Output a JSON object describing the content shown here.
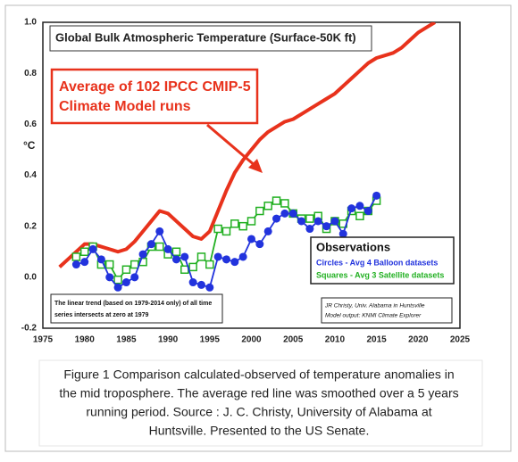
{
  "chart_data": {
    "type": "line",
    "title": "Global Bulk Atmospheric Temperature (Surface-50K ft)",
    "ylabel": "°C",
    "annotation": [
      "Average of 102 IPCC CMIP-5",
      "Climate Model runs"
    ],
    "legend_title": "Observations",
    "note": [
      "The linear trend (based on 1979-2014 only) of all time",
      "series intersects at zero at 1979"
    ],
    "credit": [
      "JR Christy, Univ. Alabama in Huntsville",
      "Model output: KNMI Climate Explorer"
    ],
    "caption": [
      "Figure 1 Comparison calculated-observed of temperature anomalies in",
      "the mid troposphere. The average red line was smoothed over a 5 years",
      "running period. Source : J. C. Christy, University of Alabama at",
      "Huntsville. Presented to the US Senate."
    ],
    "xlim": [
      1975,
      2025
    ],
    "xticks": [
      1975,
      1980,
      1985,
      1990,
      1995,
      2000,
      2005,
      2010,
      2015,
      2020,
      2025
    ],
    "ylim": [
      -0.2,
      1.0
    ],
    "yticks": [
      -0.2,
      {
        "value": 0,
        "label": "0.0"
      },
      0.2,
      0.4,
      0.6,
      0.8,
      {
        "value": 1,
        "label": "1.0"
      }
    ],
    "series": [
      {
        "color": "#e8321c",
        "marker": "none",
        "x": [
          1977,
          1978,
          1979,
          1980,
          1981,
          1982,
          1983,
          1984,
          1985,
          1986,
          1987,
          1988,
          1989,
          1990,
          1991,
          1992,
          1993,
          1994,
          1995,
          1996,
          1997,
          1998,
          1999,
          2000,
          2001,
          2002,
          2003,
          2004,
          2005,
          2006,
          2007,
          2008,
          2009,
          2010,
          2011,
          2012,
          2013,
          2014,
          2015,
          2016,
          2017,
          2018,
          2019,
          2020,
          2021,
          2022
        ],
        "values": [
          0.04,
          0.07,
          0.1,
          0.13,
          0.13,
          0.12,
          0.11,
          0.1,
          0.11,
          0.14,
          0.18,
          0.22,
          0.26,
          0.25,
          0.22,
          0.19,
          0.16,
          0.15,
          0.18,
          0.26,
          0.34,
          0.41,
          0.46,
          0.5,
          0.54,
          0.57,
          0.59,
          0.61,
          0.62,
          0.64,
          0.66,
          0.68,
          0.7,
          0.72,
          0.75,
          0.78,
          0.81,
          0.84,
          0.86,
          0.87,
          0.88,
          0.9,
          0.93,
          0.96,
          0.98,
          1.0
        ]
      },
      {
        "name": "Circles - Avg 4 Balloon datasets",
        "color": "#2233dd",
        "marker": "circle",
        "x": [
          1979,
          1980,
          1981,
          1982,
          1983,
          1984,
          1985,
          1986,
          1987,
          1988,
          1989,
          1990,
          1991,
          1992,
          1993,
          1994,
          1995,
          1996,
          1997,
          1998,
          1999,
          2000,
          2001,
          2002,
          2003,
          2004,
          2005,
          2006,
          2007,
          2008,
          2009,
          2010,
          2011,
          2012,
          2013,
          2014,
          2015
        ],
        "values": [
          0.05,
          0.06,
          0.11,
          0.07,
          0.0,
          -0.04,
          -0.02,
          0.0,
          0.09,
          0.13,
          0.18,
          0.11,
          0.07,
          0.08,
          -0.02,
          -0.03,
          -0.04,
          0.08,
          0.07,
          0.06,
          0.08,
          0.15,
          0.13,
          0.18,
          0.23,
          0.25,
          0.25,
          0.22,
          0.19,
          0.22,
          0.2,
          0.22,
          0.17,
          0.27,
          0.28,
          0.26,
          0.32
        ]
      },
      {
        "name": "Squares - Avg 3 Satellite datasets",
        "color": "#22b022",
        "marker": "square",
        "x": [
          1979,
          1980,
          1981,
          1982,
          1983,
          1984,
          1985,
          1986,
          1987,
          1988,
          1989,
          1990,
          1991,
          1992,
          1993,
          1994,
          1995,
          1996,
          1997,
          1998,
          1999,
          2000,
          2001,
          2002,
          2003,
          2004,
          2005,
          2006,
          2007,
          2008,
          2009,
          2010,
          2011,
          2012,
          2013,
          2014,
          2015
        ],
        "values": [
          0.08,
          0.1,
          0.12,
          0.05,
          0.05,
          -0.01,
          0.03,
          0.05,
          0.06,
          0.12,
          0.12,
          0.09,
          0.1,
          0.03,
          0.04,
          0.08,
          0.05,
          0.19,
          0.18,
          0.21,
          0.2,
          0.22,
          0.26,
          0.28,
          0.3,
          0.29,
          0.25,
          0.23,
          0.23,
          0.24,
          0.19,
          0.22,
          0.21,
          0.26,
          0.24,
          0.26,
          0.3
        ]
      }
    ]
  }
}
